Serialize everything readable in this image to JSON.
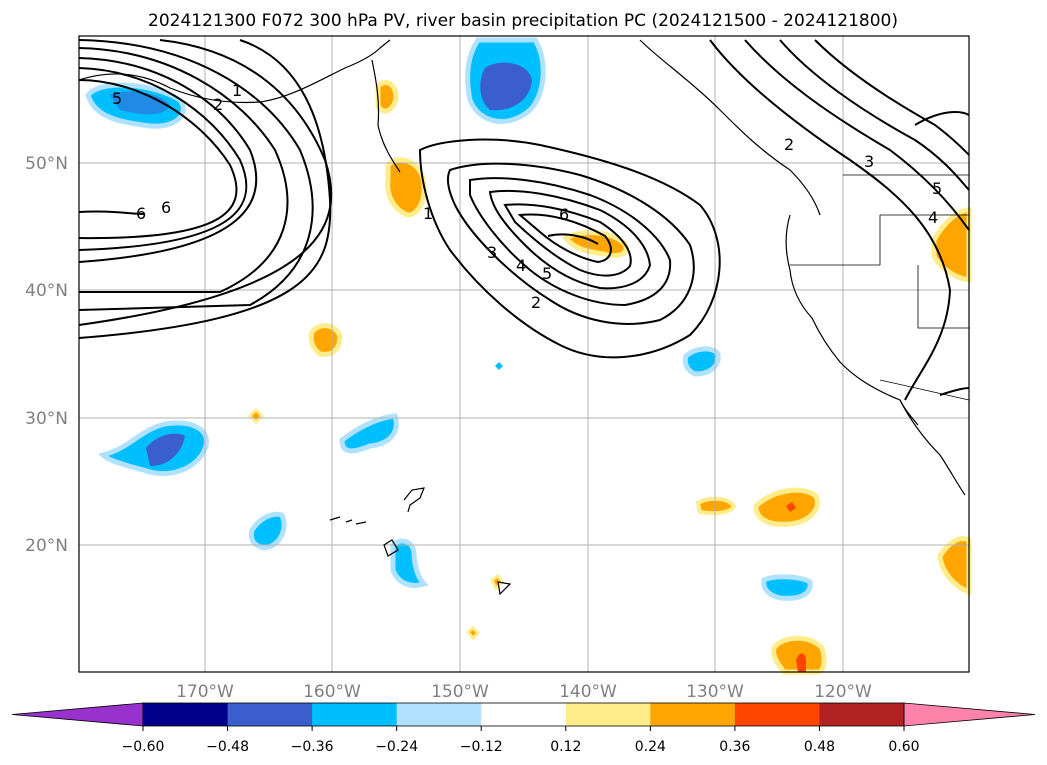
{
  "title": "2024121300 F072 300 hPa PV, river basin precipitation PC (2024121500 - 2024121800)",
  "lat_labels": [
    "50°N",
    "40°N",
    "30°N",
    "20°N"
  ],
  "lon_labels": [
    "170°W",
    "160°W",
    "150°W",
    "140°W",
    "130°W",
    "120°W"
  ],
  "contour_labels": [
    "1",
    "2",
    "3",
    "4",
    "5",
    "6"
  ],
  "colorbar": {
    "ticks": [
      "−0.60",
      "−0.48",
      "−0.36",
      "−0.24",
      "−0.12",
      "0.12",
      "0.24",
      "0.36",
      "0.48",
      "0.60"
    ],
    "colors": [
      "#9932cc",
      "#00008b",
      "#3a5fcd",
      "#00bfff",
      "#b0e2ff",
      "#ffffff",
      "#ffec8b",
      "#ffa500",
      "#ff4500",
      "#b22222",
      "#ff82ab"
    ]
  }
}
